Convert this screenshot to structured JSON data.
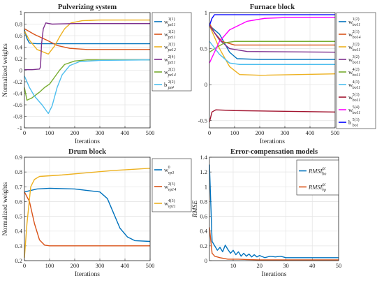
{
  "chart_data": [
    {
      "type": "line",
      "title": "Pulverizing system",
      "xlabel": "Iterations",
      "ylabel": "Normalized weights",
      "xlim": [
        0,
        500
      ],
      "ylim": [
        -1,
        1
      ],
      "xticks": [
        "0",
        "100",
        "200",
        "300",
        "400",
        "500"
      ],
      "yticks": [
        "-1",
        "-0.8",
        "-0.6",
        "-0.4",
        "-0.2",
        "0",
        "0.2",
        "0.4",
        "0.6",
        "0.8",
        "1"
      ],
      "grid": true,
      "legend_position": "right",
      "series": [
        {
          "name": "w",
          "sup": "1(1)",
          "sub": "pz11",
          "color": "#0072BD",
          "points": [
            [
              0,
              0.7
            ],
            [
              10,
              0.55
            ],
            [
              20,
              0.47
            ],
            [
              50,
              0.46
            ],
            [
              100,
              0.46
            ],
            [
              200,
              0.46
            ],
            [
              300,
              0.46
            ],
            [
              400,
              0.46
            ],
            [
              500,
              0.46
            ]
          ]
        },
        {
          "name": "w",
          "sup": "1(2)",
          "sub": "pz11",
          "color": "#D95319",
          "points": [
            [
              0,
              0.72
            ],
            [
              40,
              0.62
            ],
            [
              90,
              0.52
            ],
            [
              130,
              0.43
            ],
            [
              180,
              0.38
            ],
            [
              250,
              0.36
            ],
            [
              500,
              0.36
            ]
          ]
        },
        {
          "name": "w",
          "sup": "2(2)",
          "sub": "pz12",
          "color": "#EDB120",
          "points": [
            [
              0,
              0.68
            ],
            [
              20,
              0.52
            ],
            [
              50,
              0.36
            ],
            [
              95,
              0.28
            ],
            [
              120,
              0.42
            ],
            [
              140,
              0.58
            ],
            [
              160,
              0.72
            ],
            [
              185,
              0.82
            ],
            [
              230,
              0.86
            ],
            [
              300,
              0.87
            ],
            [
              500,
              0.87
            ]
          ]
        },
        {
          "name": "w",
          "sup": "2(4)",
          "sub": "pz11",
          "color": "#7E2F8E",
          "points": [
            [
              0,
              0.01
            ],
            [
              30,
              0.01
            ],
            [
              60,
              0.02
            ],
            [
              64,
              0.06
            ],
            [
              68,
              0.45
            ],
            [
              75,
              0.72
            ],
            [
              85,
              0.82
            ],
            [
              110,
              0.8
            ],
            [
              200,
              0.81
            ],
            [
              500,
              0.81
            ]
          ]
        },
        {
          "name": "w",
          "sup": "2(2)",
          "sub": "pz14",
          "color": "#77AC30",
          "points": [
            [
              0,
              -0.3
            ],
            [
              10,
              -0.52
            ],
            [
              30,
              -0.48
            ],
            [
              60,
              -0.38
            ],
            [
              80,
              -0.3
            ],
            [
              100,
              -0.24
            ],
            [
              120,
              -0.12
            ],
            [
              140,
              0.0
            ],
            [
              160,
              0.1
            ],
            [
              200,
              0.16
            ],
            [
              250,
              0.18
            ],
            [
              500,
              0.18
            ]
          ]
        },
        {
          "name": "b",
          "sup": "2(2)",
          "sub": "pz4",
          "color": "#4DBEEE",
          "points": [
            [
              0,
              -0.1
            ],
            [
              20,
              -0.3
            ],
            [
              40,
              -0.45
            ],
            [
              70,
              -0.6
            ],
            [
              95,
              -0.75
            ],
            [
              110,
              -0.62
            ],
            [
              130,
              -0.3
            ],
            [
              150,
              -0.08
            ],
            [
              180,
              0.08
            ],
            [
              220,
              0.15
            ],
            [
              300,
              0.17
            ],
            [
              500,
              0.18
            ]
          ]
        }
      ]
    },
    {
      "type": "line",
      "title": "Furnace block",
      "xlabel": "Iterations",
      "ylabel": "",
      "xlim": [
        0,
        500
      ],
      "ylim": [
        -0.6,
        1
      ],
      "xticks": [
        "0",
        "100",
        "200",
        "300",
        "400",
        "500"
      ],
      "yticks": [
        "-0.5",
        "0",
        "0.5",
        "1"
      ],
      "grid": true,
      "legend_position": "right",
      "series": [
        {
          "name": "w",
          "sup": "1(2)",
          "sub": "bo11",
          "color": "#0072BD",
          "points": [
            [
              0,
              0.82
            ],
            [
              40,
              0.7
            ],
            [
              80,
              0.45
            ],
            [
              110,
              0.36
            ],
            [
              200,
              0.35
            ],
            [
              500,
              0.35
            ]
          ]
        },
        {
          "name": "w",
          "sup": "2(1)",
          "sub": "bo14",
          "color": "#D95319",
          "points": [
            [
              0,
              0.85
            ],
            [
              20,
              0.72
            ],
            [
              50,
              0.6
            ],
            [
              100,
              0.55
            ],
            [
              500,
              0.55
            ]
          ]
        },
        {
          "name": "w",
          "sup": "2(2)",
          "sub": "bo11",
          "color": "#EDB120",
          "points": [
            [
              0,
              0.82
            ],
            [
              40,
              0.5
            ],
            [
              80,
              0.25
            ],
            [
              120,
              0.14
            ],
            [
              200,
              0.13
            ],
            [
              500,
              0.15
            ]
          ]
        },
        {
          "name": "w",
          "sup": "3(2)",
          "sub": "bo11",
          "color": "#7E2F8E",
          "points": [
            [
              0,
              0.82
            ],
            [
              40,
              0.62
            ],
            [
              80,
              0.5
            ],
            [
              150,
              0.46
            ],
            [
              500,
              0.45
            ]
          ]
        },
        {
          "name": "w",
          "sup": "4(2)",
          "sub": "bo11",
          "color": "#77AC30",
          "points": [
            [
              0,
              0.45
            ],
            [
              30,
              0.52
            ],
            [
              60,
              0.58
            ],
            [
              100,
              0.6
            ],
            [
              500,
              0.6
            ]
          ]
        },
        {
          "name": "w",
          "sup": "4(3)",
          "sub": "bo11",
          "color": "#4DBEEE",
          "points": [
            [
              0,
              0.6
            ],
            [
              40,
              0.42
            ],
            [
              80,
              0.3
            ],
            [
              120,
              0.28
            ],
            [
              500,
              0.28
            ]
          ]
        },
        {
          "name": "w",
          "sup": "5(1)",
          "sub": "bo11",
          "color": "#A2142F",
          "points": [
            [
              0,
              -0.52
            ],
            [
              10,
              -0.38
            ],
            [
              25,
              -0.35
            ],
            [
              100,
              -0.36
            ],
            [
              300,
              -0.37
            ],
            [
              500,
              -0.38
            ]
          ]
        },
        {
          "name": "w",
          "sup": "5(4)",
          "sub": "bo11",
          "color": "#FF00FF",
          "points": [
            [
              0,
              0.3
            ],
            [
              40,
              0.6
            ],
            [
              80,
              0.76
            ],
            [
              150,
              0.88
            ],
            [
              220,
              0.92
            ],
            [
              300,
              0.93
            ],
            [
              500,
              0.93
            ]
          ]
        },
        {
          "name": "b",
          "sup": "5(1)",
          "sub": "bo1",
          "color": "#0000FF",
          "points": [
            [
              0,
              0.82
            ],
            [
              10,
              0.92
            ],
            [
              20,
              0.97
            ],
            [
              60,
              0.97
            ],
            [
              200,
              0.97
            ],
            [
              500,
              0.97
            ]
          ]
        }
      ]
    },
    {
      "type": "line",
      "title": "Drum block",
      "xlabel": "Iterations",
      "ylabel": "Normalized weights",
      "xlim": [
        0,
        500
      ],
      "ylim": [
        0.2,
        0.9
      ],
      "xticks": [
        "0",
        "100",
        "200",
        "300",
        "400",
        "500"
      ],
      "yticks": [
        "0.2",
        "0.3",
        "0.4",
        "0.5",
        "0.6",
        "0.7",
        "0.8",
        "0.9"
      ],
      "grid": true,
      "legend_position": "right",
      "series": [
        {
          "name": "w",
          "sup": "0",
          "sub": "vp3",
          "color": "#0072BD",
          "points": [
            [
              0,
              0.665
            ],
            [
              50,
              0.685
            ],
            [
              100,
              0.69
            ],
            [
              200,
              0.685
            ],
            [
              300,
              0.665
            ],
            [
              330,
              0.62
            ],
            [
              360,
              0.5
            ],
            [
              380,
              0.42
            ],
            [
              410,
              0.36
            ],
            [
              440,
              0.335
            ],
            [
              500,
              0.33
            ]
          ]
        },
        {
          "name": "w",
          "sup": "2(3)",
          "sub": "vp14",
          "color": "#D95319",
          "points": [
            [
              0,
              0.665
            ],
            [
              20,
              0.6
            ],
            [
              40,
              0.45
            ],
            [
              60,
              0.34
            ],
            [
              80,
              0.305
            ],
            [
              100,
              0.3
            ],
            [
              500,
              0.3
            ]
          ]
        },
        {
          "name": "w",
          "sup": "4(3)",
          "sub": "vp11",
          "color": "#EDB120",
          "points": [
            [
              0,
              0.22
            ],
            [
              10,
              0.45
            ],
            [
              25,
              0.7
            ],
            [
              40,
              0.75
            ],
            [
              60,
              0.77
            ],
            [
              150,
              0.78
            ],
            [
              250,
              0.795
            ],
            [
              350,
              0.81
            ],
            [
              450,
              0.82
            ],
            [
              500,
              0.825
            ]
          ]
        }
      ]
    },
    {
      "type": "line",
      "title": "Error-compensation models",
      "xlabel": "Iterations",
      "ylabel": "RMSE",
      "xlim": [
        1,
        50
      ],
      "ylim": [
        0,
        1.4
      ],
      "xticks": [
        "10",
        "20",
        "30",
        "40",
        "50"
      ],
      "yticks": [
        "0",
        "0.2",
        "0.4",
        "0.6",
        "0.8",
        "1",
        "1.2",
        "1.4"
      ],
      "grid": true,
      "legend_position": "top-right",
      "series": [
        {
          "name": "RMSE",
          "sup": "ec",
          "sub": "bo",
          "color": "#0072BD",
          "points": [
            [
              1,
              1.3
            ],
            [
              2,
              0.26
            ],
            [
              3,
              0.2
            ],
            [
              4,
              0.14
            ],
            [
              5,
              0.18
            ],
            [
              6,
              0.12
            ],
            [
              7,
              0.21
            ],
            [
              8,
              0.15
            ],
            [
              9,
              0.1
            ],
            [
              10,
              0.14
            ],
            [
              11,
              0.08
            ],
            [
              12,
              0.12
            ],
            [
              13,
              0.06
            ],
            [
              14,
              0.1
            ],
            [
              15,
              0.06
            ],
            [
              16,
              0.09
            ],
            [
              17,
              0.05
            ],
            [
              18,
              0.08
            ],
            [
              19,
              0.05
            ],
            [
              20,
              0.07
            ],
            [
              22,
              0.04
            ],
            [
              24,
              0.06
            ],
            [
              26,
              0.05
            ],
            [
              28,
              0.06
            ],
            [
              30,
              0.04
            ],
            [
              35,
              0.04
            ],
            [
              40,
              0.04
            ],
            [
              45,
              0.04
            ],
            [
              50,
              0.04
            ]
          ]
        },
        {
          "name": "RMSE",
          "sup": "ec",
          "sub": "vp",
          "color": "#D95319",
          "points": [
            [
              1,
              0.45
            ],
            [
              2,
              0.1
            ],
            [
              3,
              0.06
            ],
            [
              5,
              0.04
            ],
            [
              8,
              0.02
            ],
            [
              12,
              0.02
            ],
            [
              15,
              0.015
            ],
            [
              20,
              0.01
            ],
            [
              30,
              0.01
            ],
            [
              40,
              0.01
            ],
            [
              50,
              0.01
            ]
          ]
        }
      ]
    }
  ]
}
